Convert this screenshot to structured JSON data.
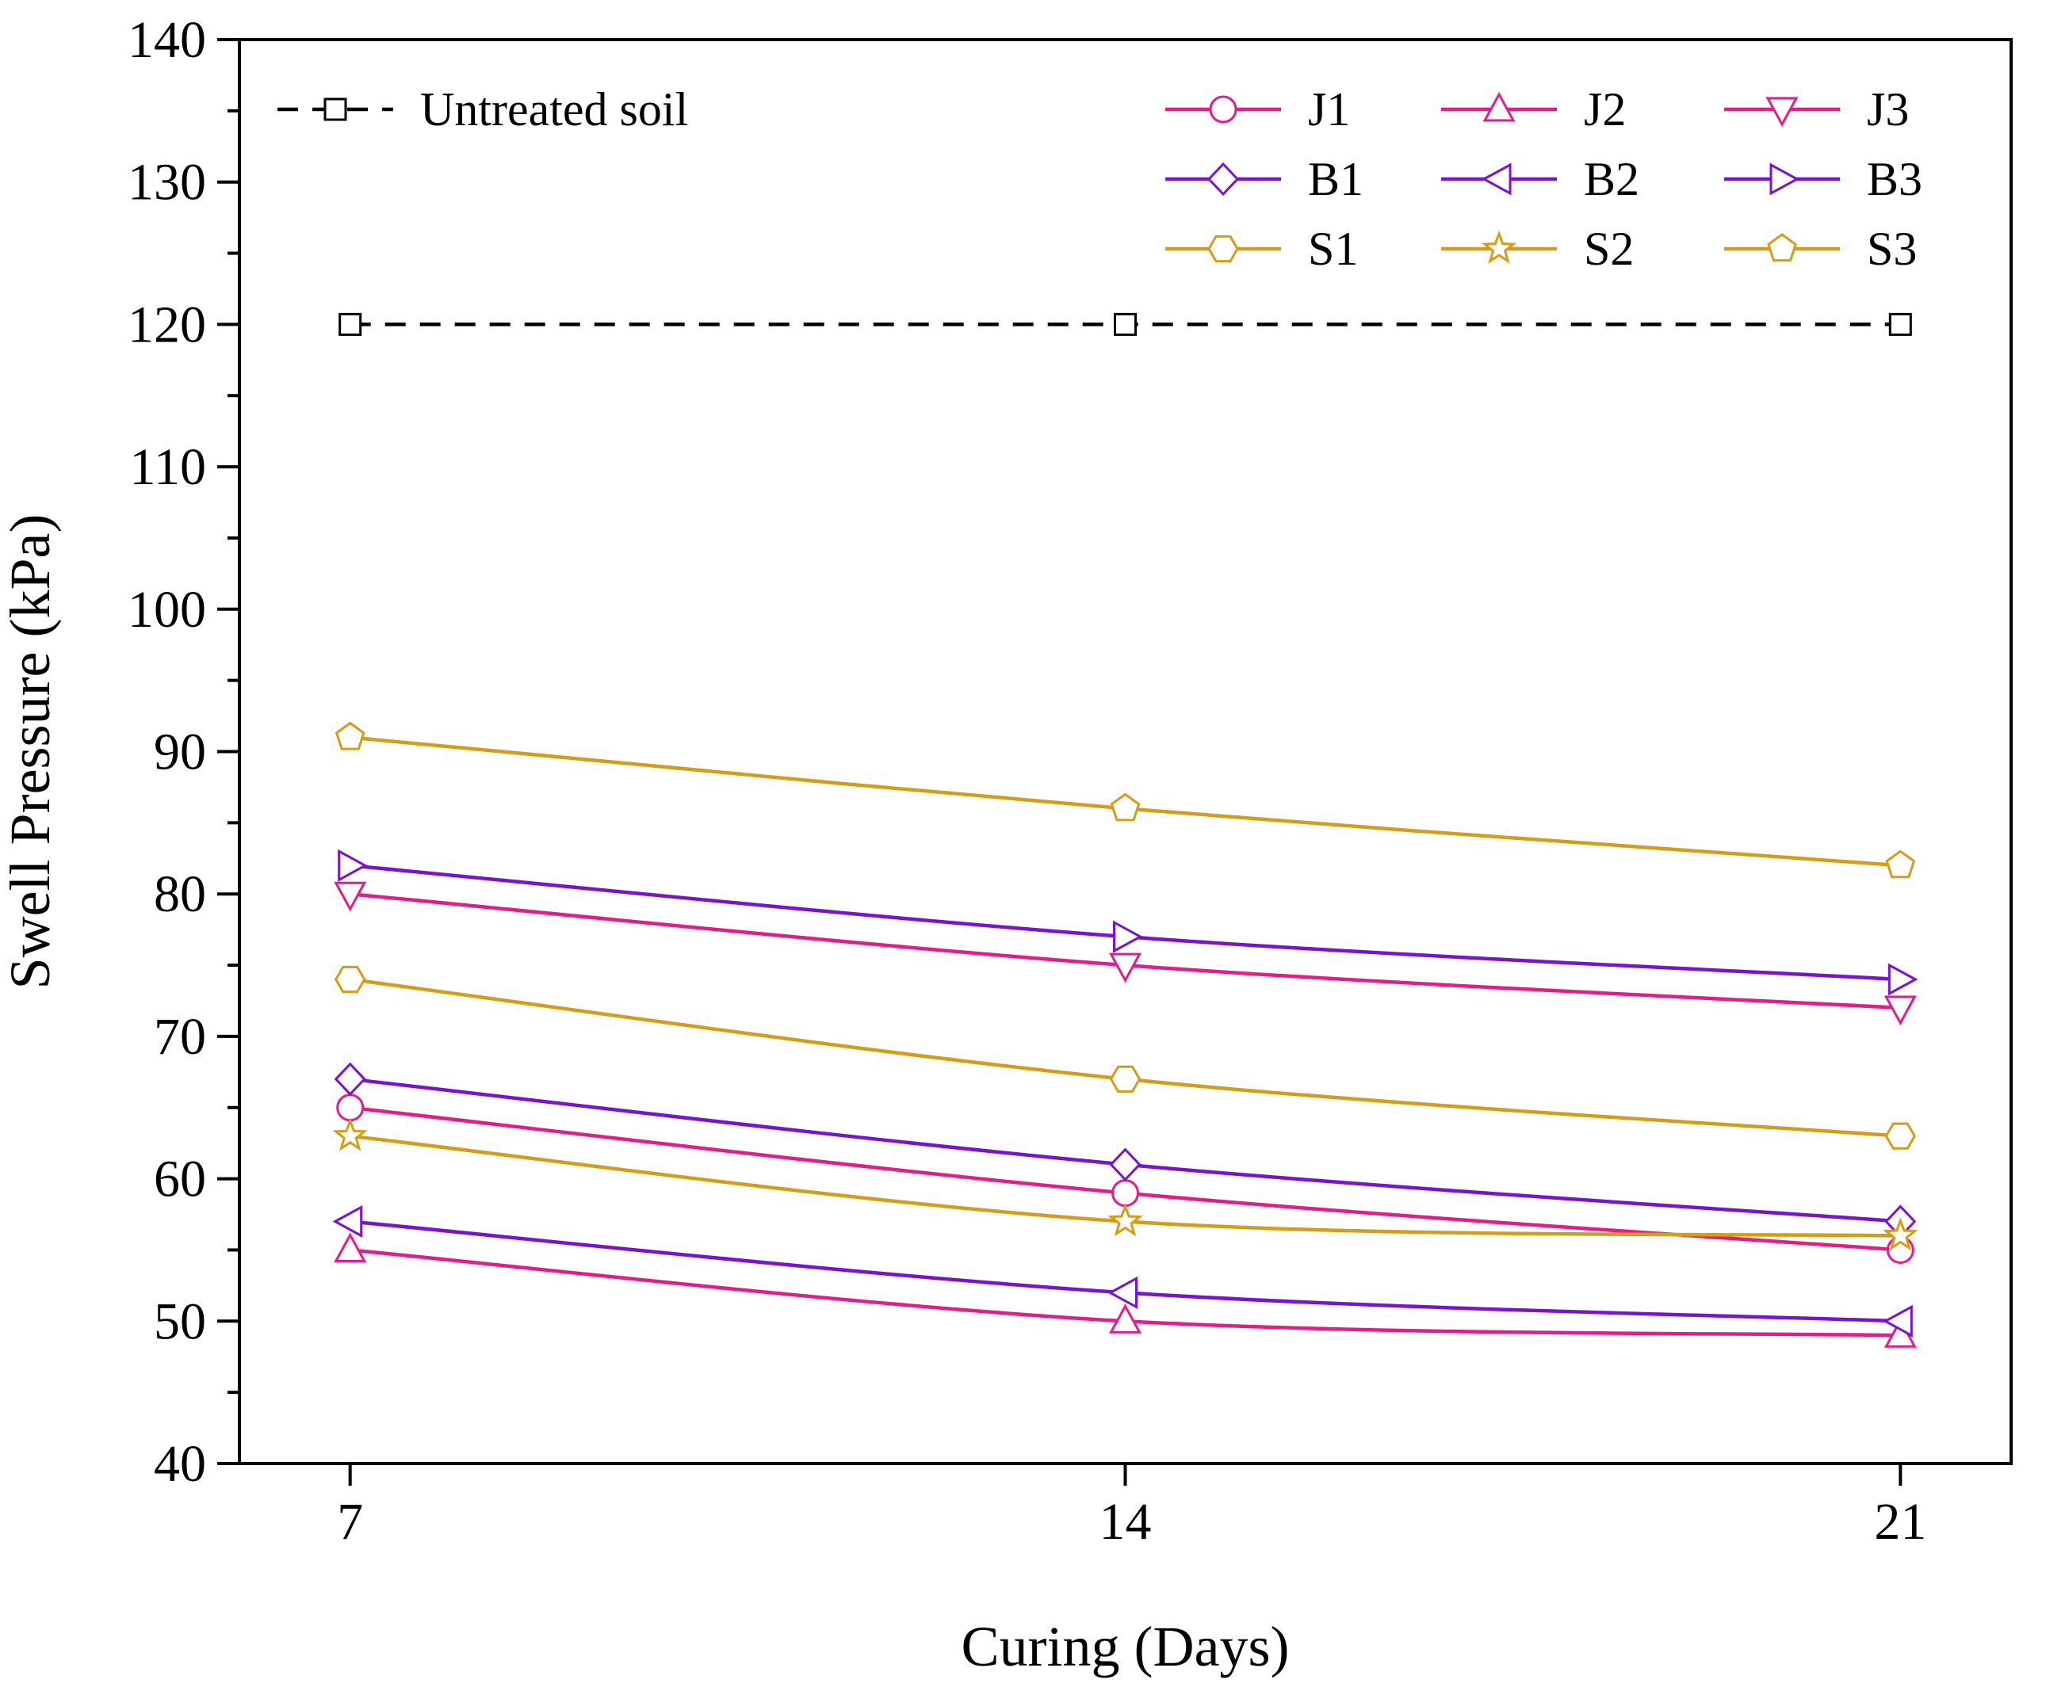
{
  "chart_data": {
    "type": "line",
    "title": "",
    "xlabel": "Curing (Days)",
    "ylabel": "Swell Pressure (kPa)",
    "x": [
      7,
      14,
      21
    ],
    "x_tick_labels": [
      "7",
      "14",
      "21"
    ],
    "xlim": [
      6,
      22
    ],
    "ylim": [
      40,
      140
    ],
    "y_ticks": [
      40,
      50,
      60,
      70,
      80,
      90,
      100,
      110,
      120,
      130,
      140
    ],
    "y_tick_labels": [
      "40",
      "50",
      "60",
      "70",
      "80",
      "90",
      "100",
      "110",
      "120",
      "130",
      "140"
    ],
    "grid": false,
    "legend_position": "top",
    "series": [
      {
        "name": "Untreated soil",
        "values": [
          120,
          120,
          120
        ],
        "color": "#000000",
        "marker": "square",
        "dashed": true
      },
      {
        "name": "J1",
        "values": [
          65,
          59,
          55
        ],
        "color": "#e8198b",
        "marker": "circle",
        "dashed": false
      },
      {
        "name": "J2",
        "values": [
          55,
          50,
          49
        ],
        "color": "#e8198b",
        "marker": "triangle-up",
        "dashed": false
      },
      {
        "name": "J3",
        "values": [
          80,
          75,
          72
        ],
        "color": "#e8198b",
        "marker": "triangle-down",
        "dashed": false
      },
      {
        "name": "B1",
        "values": [
          67,
          61,
          57
        ],
        "color": "#7b10d6",
        "marker": "diamond",
        "dashed": false
      },
      {
        "name": "B2",
        "values": [
          57,
          52,
          50
        ],
        "color": "#7b10d6",
        "marker": "triangle-left",
        "dashed": false
      },
      {
        "name": "B3",
        "values": [
          82,
          77,
          74
        ],
        "color": "#7b10d6",
        "marker": "triangle-right",
        "dashed": false
      },
      {
        "name": "S1",
        "values": [
          74,
          67,
          63
        ],
        "color": "#d69d14",
        "marker": "hexagon",
        "dashed": false
      },
      {
        "name": "S2",
        "values": [
          63,
          57,
          56
        ],
        "color": "#d69d14",
        "marker": "star",
        "dashed": false
      },
      {
        "name": "S3",
        "values": [
          91,
          86,
          82
        ],
        "color": "#d69d14",
        "marker": "pentagon",
        "dashed": false
      }
    ]
  }
}
